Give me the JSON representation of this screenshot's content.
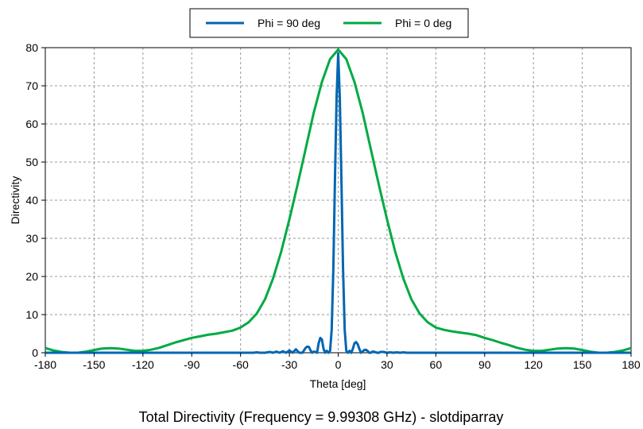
{
  "chart_data": {
    "type": "line",
    "title": "Total Directivity (Frequency = 9.99308 GHz) - slotdiparray",
    "xlabel": "Theta [deg]",
    "ylabel": "Directivity",
    "xlim": [
      -180,
      180
    ],
    "ylim": [
      0,
      80
    ],
    "xticks": [
      -180,
      -150,
      -120,
      -90,
      -60,
      -30,
      0,
      30,
      60,
      90,
      120,
      150,
      180
    ],
    "yticks": [
      0,
      10,
      20,
      30,
      40,
      50,
      60,
      70,
      80
    ],
    "grid": true,
    "legend_position": "top-center",
    "series": [
      {
        "name": "Phi = 90 deg",
        "color": "#0066b3",
        "x": [
          -180,
          -60,
          -52,
          -50,
          -48,
          -45,
          -42,
          -40,
          -38,
          -36,
          -34,
          -32,
          -30,
          -28,
          -26,
          -24,
          -22,
          -20,
          -19,
          -18,
          -17,
          -16,
          -15,
          -14,
          -13,
          -12,
          -11,
          -10,
          -9,
          -8,
          -7,
          -6,
          -5,
          -4,
          -3,
          -2,
          -1,
          0,
          1,
          2,
          3,
          4,
          5,
          6,
          7,
          8,
          9,
          10,
          11,
          12,
          13,
          14,
          15,
          16,
          17,
          18,
          19,
          20,
          21,
          22,
          23,
          24,
          25,
          26,
          28,
          30,
          32,
          34,
          36,
          38,
          40,
          42,
          45,
          60,
          180
        ],
        "y": [
          0,
          0,
          0,
          0.1,
          0,
          0,
          0.2,
          0,
          0.3,
          0,
          0.4,
          0,
          0.6,
          0,
          0.9,
          0,
          0,
          1.3,
          1.6,
          1.5,
          0.6,
          0,
          0.3,
          0.2,
          0,
          2.5,
          3.9,
          3.5,
          1,
          0,
          0.5,
          0,
          0.5,
          6,
          22,
          45,
          67,
          78.5,
          67,
          45,
          22,
          6,
          0.5,
          0,
          0.5,
          0,
          1,
          2.5,
          2.8,
          2.2,
          1,
          0,
          0.3,
          0.7,
          0.8,
          0.5,
          0,
          0,
          0.3,
          0.3,
          0.1,
          0,
          0,
          0.2,
          0.2,
          0,
          0.1,
          0,
          0.1,
          0,
          0.1,
          0,
          0,
          0,
          0
        ]
      },
      {
        "name": "Phi = 0 deg",
        "color": "#00aa44",
        "x": [
          -180,
          -175,
          -170,
          -165,
          -160,
          -155,
          -150,
          -145,
          -140,
          -135,
          -130,
          -125,
          -120,
          -115,
          -110,
          -105,
          -100,
          -95,
          -90,
          -85,
          -80,
          -75,
          -70,
          -65,
          -60,
          -55,
          -50,
          -45,
          -40,
          -35,
          -30,
          -25,
          -20,
          -15,
          -10,
          -5,
          0,
          5,
          10,
          15,
          20,
          25,
          30,
          35,
          40,
          45,
          50,
          55,
          60,
          65,
          70,
          75,
          80,
          85,
          90,
          95,
          100,
          105,
          110,
          115,
          120,
          125,
          130,
          135,
          140,
          145,
          150,
          155,
          160,
          165,
          170,
          175,
          180
        ],
        "y": [
          1.2,
          0.6,
          0.2,
          0,
          0,
          0.3,
          0.7,
          1.1,
          1.2,
          1.1,
          0.8,
          0.5,
          0.5,
          0.8,
          1.3,
          2,
          2.7,
          3.3,
          3.9,
          4.3,
          4.7,
          5,
          5.4,
          5.8,
          6.6,
          8,
          10.3,
          14,
          19.5,
          26.5,
          35,
          44,
          53.5,
          63,
          71,
          77,
          79.5,
          77,
          71,
          63,
          53.5,
          44,
          35,
          26.5,
          19.5,
          14,
          10.3,
          8,
          6.6,
          6,
          5.6,
          5.3,
          5,
          4.6,
          3.9,
          3.3,
          2.6,
          2,
          1.3,
          0.8,
          0.5,
          0.5,
          0.8,
          1.1,
          1.2,
          1.1,
          0.7,
          0.3,
          0,
          0,
          0.2,
          0.6,
          1.2
        ]
      }
    ]
  }
}
